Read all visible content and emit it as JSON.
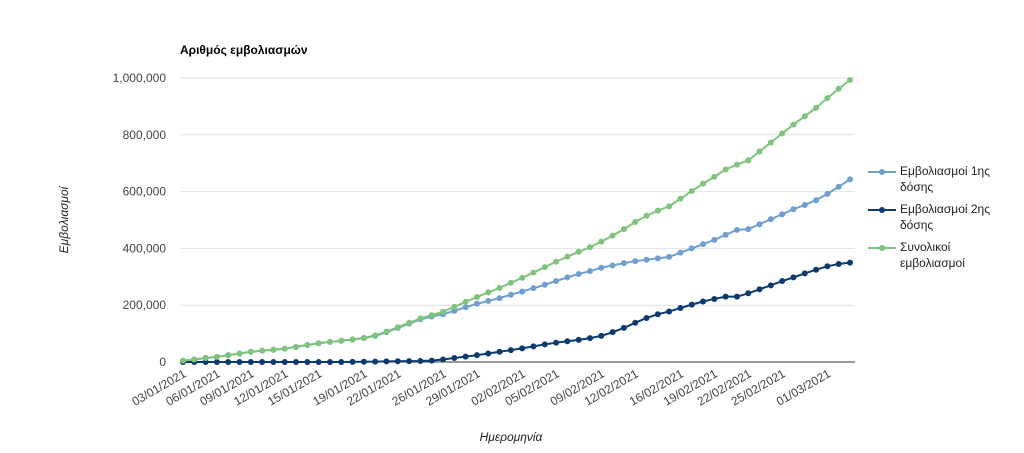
{
  "chart_data": {
    "type": "line",
    "title": "Αριθμός εμβολιασμών",
    "y_label": "Εμβολιασμοί",
    "x_label": "Ημερομηνία",
    "categories": [
      "03/01/2021",
      null,
      null,
      "06/01/2021",
      null,
      null,
      "09/01/2021",
      null,
      null,
      "12/01/2021",
      null,
      null,
      "15/01/2021",
      null,
      null,
      null,
      "19/01/2021",
      null,
      null,
      "22/01/2021",
      null,
      null,
      null,
      "26/01/2021",
      null,
      null,
      "29/01/2021",
      null,
      null,
      null,
      "02/02/2021",
      null,
      null,
      "05/02/2021",
      null,
      null,
      null,
      "09/02/2021",
      null,
      null,
      "12/02/2021",
      null,
      null,
      null,
      "16/02/2021",
      null,
      null,
      "19/02/2021",
      null,
      null,
      "22/02/2021",
      null,
      null,
      "25/02/2021",
      null,
      null,
      null,
      "01/03/2021",
      null,
      null
    ],
    "series": [
      {
        "name": "Εμβολιασμοί 1ης δόσης",
        "color": "#6f9fcf",
        "values": [
          5000,
          9000,
          14000,
          18000,
          24000,
          30000,
          36000,
          40000,
          43000,
          47000,
          53000,
          60000,
          66000,
          71000,
          75000,
          79000,
          84000,
          92000,
          105000,
          120000,
          135000,
          150000,
          160000,
          168000,
          180000,
          193000,
          205000,
          215000,
          225000,
          237000,
          248000,
          260000,
          272000,
          285000,
          298000,
          310000,
          320000,
          332000,
          340000,
          348000,
          355000,
          360000,
          365000,
          370000,
          385000,
          400000,
          415000,
          430000,
          448000,
          465000,
          468000,
          485000,
          503000,
          520000,
          538000,
          553000,
          570000,
          592000,
          617000,
          643000
        ]
      },
      {
        "name": "Εμβολιασμοί 2ης δόσης",
        "color": "#0d3a6e",
        "values": [
          0,
          0,
          0,
          0,
          0,
          0,
          0,
          0,
          0,
          0,
          0,
          0,
          0,
          0,
          0,
          500,
          1000,
          1500,
          2000,
          2500,
          3000,
          3500,
          5000,
          9000,
          14000,
          19000,
          24000,
          30000,
          36000,
          42000,
          48000,
          55000,
          62000,
          68000,
          73000,
          78000,
          84000,
          92000,
          105000,
          120000,
          138000,
          155000,
          168000,
          178000,
          190000,
          202000,
          213000,
          222000,
          230000,
          230000,
          242000,
          256000,
          270000,
          285000,
          298000,
          312000,
          325000,
          337000,
          345000,
          350000
        ]
      },
      {
        "name": "Συνολικοί εμβολιασμοί",
        "color": "#7dc57a",
        "values": [
          5000,
          9000,
          14000,
          18000,
          24000,
          30000,
          36000,
          40000,
          43000,
          47000,
          53000,
          60000,
          66000,
          71000,
          75000,
          79500,
          85000,
          93500,
          107000,
          122500,
          138000,
          153500,
          165000,
          177000,
          194000,
          212000,
          229000,
          245000,
          261000,
          279000,
          296000,
          315000,
          334000,
          353000,
          371000,
          388000,
          404000,
          424000,
          445000,
          468000,
          493000,
          515000,
          533000,
          548000,
          575000,
          602000,
          628000,
          652000,
          678000,
          695000,
          710000,
          741000,
          773000,
          805000,
          836000,
          865000,
          895000,
          929000,
          962000,
          993000
        ]
      }
    ],
    "ylim": [
      0,
      1000000
    ],
    "yticks": [
      0,
      {
        "value": 200000,
        "label": "200,000"
      },
      {
        "value": 400000,
        "label": "400,000"
      },
      {
        "value": 600000,
        "label": "600,000"
      },
      {
        "value": 800000,
        "label": "800,000"
      },
      {
        "value": 1000000,
        "label": "1,000,000"
      }
    ],
    "grid": true,
    "legend": "right"
  }
}
